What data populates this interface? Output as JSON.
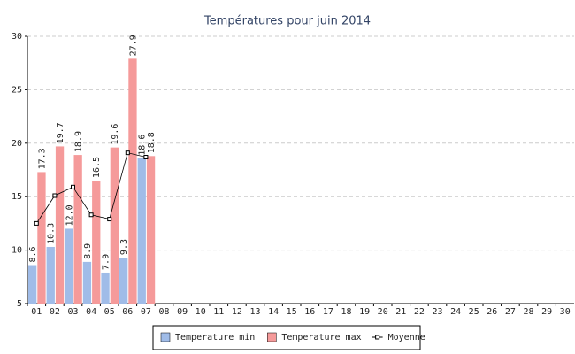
{
  "chart_data": {
    "type": "bar",
    "title": "Températures pour juin 2014",
    "categories": [
      "01",
      "02",
      "03",
      "04",
      "05",
      "06",
      "07",
      "08",
      "09",
      "10",
      "11",
      "12",
      "13",
      "14",
      "15",
      "16",
      "17",
      "18",
      "19",
      "20",
      "21",
      "22",
      "23",
      "24",
      "25",
      "26",
      "27",
      "28",
      "29",
      "30"
    ],
    "series": [
      {
        "name": "Temperature min",
        "color": "#a0bce8",
        "values": [
          8.6,
          10.3,
          12.0,
          8.9,
          7.9,
          9.3,
          18.6,
          null,
          null,
          null,
          null,
          null,
          null,
          null,
          null,
          null,
          null,
          null,
          null,
          null,
          null,
          null,
          null,
          null,
          null,
          null,
          null,
          null,
          null,
          null
        ],
        "value_labels": [
          "8.6",
          "10.3",
          "12.0",
          "8.9",
          "7.9",
          "9.3",
          "18.6",
          null,
          null,
          null,
          null,
          null,
          null,
          null,
          null,
          null,
          null,
          null,
          null,
          null,
          null,
          null,
          null,
          null,
          null,
          null,
          null,
          null,
          null,
          null
        ]
      },
      {
        "name": "Temperature max",
        "color": "#f59a9a",
        "values": [
          17.3,
          19.7,
          18.9,
          16.5,
          19.6,
          27.9,
          18.8,
          null,
          null,
          null,
          null,
          null,
          null,
          null,
          null,
          null,
          null,
          null,
          null,
          null,
          null,
          null,
          null,
          null,
          null,
          null,
          null,
          null,
          null,
          null
        ],
        "value_labels": [
          "17.3",
          "19.7",
          "18.9",
          "16.5",
          "19.6",
          "27.9",
          "18.8",
          null,
          null,
          null,
          null,
          null,
          null,
          null,
          null,
          null,
          null,
          null,
          null,
          null,
          null,
          null,
          null,
          null,
          null,
          null,
          null,
          null,
          null,
          null
        ]
      },
      {
        "name": "Moyenne",
        "type": "line",
        "color": "#000000",
        "values": [
          12.5,
          15.1,
          15.9,
          13.3,
          12.9,
          19.1,
          18.7,
          null,
          null,
          null,
          null,
          null,
          null,
          null,
          null,
          null,
          null,
          null,
          null,
          null,
          null,
          null,
          null,
          null,
          null,
          null,
          null,
          null,
          null,
          null
        ]
      }
    ],
    "ylim": [
      5,
      30
    ],
    "yticks": [
      5,
      10,
      15,
      20,
      25,
      30
    ],
    "grid": true
  }
}
